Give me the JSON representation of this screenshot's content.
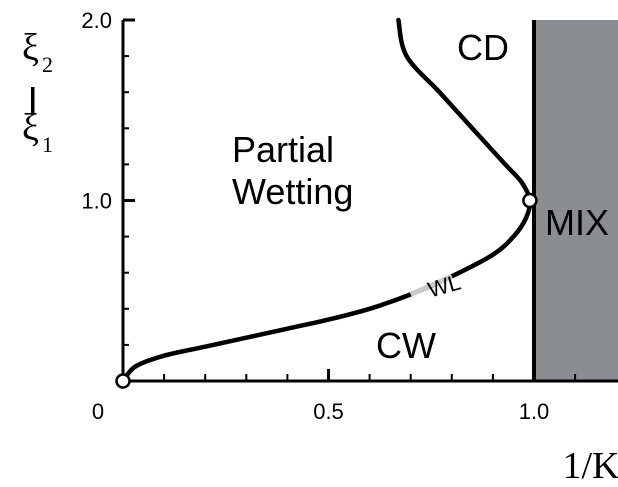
{
  "chart_data": {
    "type": "line",
    "xlabel": "1/K",
    "ylabel": {
      "numerator": "ξ",
      "numerator_sub": "2",
      "denominator": "ξ",
      "denominator_sub": "1"
    },
    "xlim": [
      0,
      1.2
    ],
    "ylim": [
      0,
      2.0
    ],
    "x_ticks": [
      {
        "value": 0,
        "label": "0"
      },
      {
        "value": 0.5,
        "label": "0.5"
      },
      {
        "value": 1.0,
        "label": "1.0"
      }
    ],
    "y_ticks": [
      {
        "value": 1.0,
        "label": "1.0"
      },
      {
        "value": 2.0,
        "label": "2.0"
      }
    ],
    "grid": false,
    "series": [
      {
        "points": [
          [
            0.0,
            0.0
          ],
          [
            0.03,
            0.08
          ],
          [
            0.1,
            0.14
          ],
          [
            0.2,
            0.19
          ],
          [
            0.3,
            0.24
          ],
          [
            0.4,
            0.29
          ],
          [
            0.5,
            0.34
          ],
          [
            0.6,
            0.4
          ],
          [
            0.7,
            0.48
          ],
          [
            0.8,
            0.58
          ],
          [
            0.9,
            0.7
          ],
          [
            0.95,
            0.8
          ],
          [
            0.98,
            0.9
          ],
          [
            0.99,
            1.0
          ],
          [
            0.97,
            1.1
          ],
          [
            0.93,
            1.2
          ],
          [
            0.85,
            1.4
          ],
          [
            0.77,
            1.6
          ],
          [
            0.69,
            1.8
          ],
          [
            0.67,
            2.0
          ]
        ]
      }
    ],
    "boundary_x": 1.0,
    "mix_region": {
      "x_from": 1.0,
      "x_to": 1.2,
      "color": "#8a8e93"
    },
    "markers": [
      {
        "x": 0.0,
        "y": 0.0
      },
      {
        "x": 0.99,
        "y": 1.0
      }
    ],
    "regions": [
      {
        "lines": [
          "Partial",
          "Wetting"
        ]
      },
      {
        "lines": [
          "CD"
        ]
      },
      {
        "lines": [
          "CW"
        ]
      },
      {
        "lines": [
          "MIX"
        ]
      }
    ],
    "annotations": [
      {
        "text": "WL",
        "x": 0.78,
        "y": 0.54
      }
    ]
  }
}
